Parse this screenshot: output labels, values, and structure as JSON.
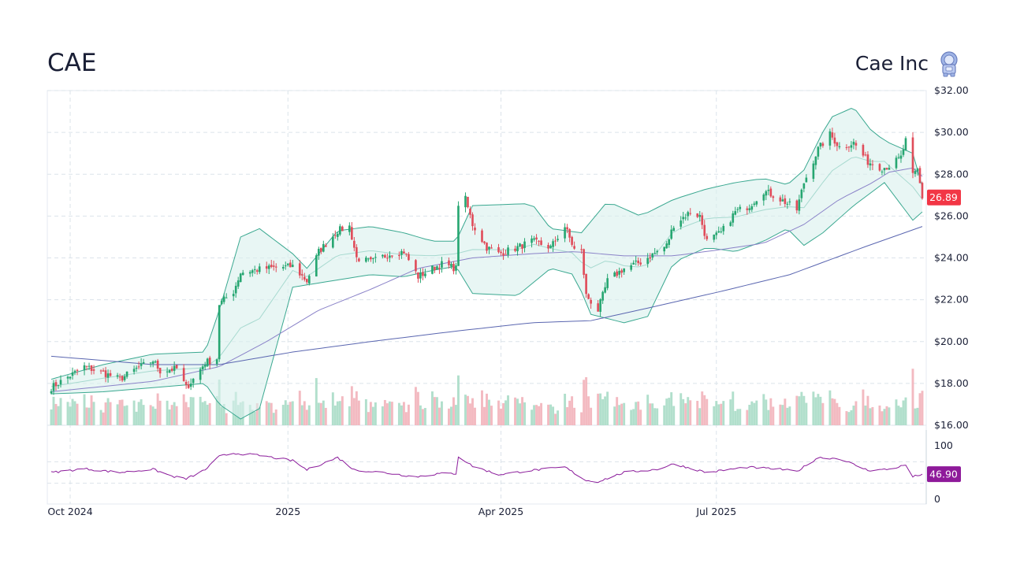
{
  "header": {
    "ticker": "CAE",
    "company": "Cae Inc"
  },
  "colors": {
    "up": "#26a671",
    "down": "#e04c5a",
    "band_line": "#3aa890",
    "band_fill": "#d8f0ec",
    "sma_mid": "#a6d9cf",
    "sma50": "#8a82c8",
    "sma200": "#5a66b0",
    "rsi": "#8a1a9a",
    "price_badge": "#f23645",
    "rsi_badge": "#8e1a9a"
  },
  "chart_data": {
    "type": "candlestick",
    "ticker": "CAE",
    "x_range": [
      "2024-09-23",
      "2025-09-26"
    ],
    "x_tick_labels": [
      {
        "date": "2024-10-01",
        "label": "Oct 2024"
      },
      {
        "date": "2025-01-01",
        "label": "2025"
      },
      {
        "date": "2025-04-01",
        "label": "Apr 2025"
      },
      {
        "date": "2025-07-01",
        "label": "Jul 2025"
      }
    ],
    "y_range": [
      16,
      32
    ],
    "y_tick_labels": [
      "$16.00",
      "$18.00",
      "$20.00",
      "$22.00",
      "$24.00",
      "$26.00",
      "$28.00",
      "$30.00",
      "$32.00"
    ],
    "y_ticks": [
      16,
      18,
      20,
      22,
      24,
      26,
      28,
      30,
      32
    ],
    "last_price": 26.89,
    "last_price_label": "26.89",
    "close_anchors": [
      [
        "2024-09-23",
        17.8
      ],
      [
        "2024-09-30",
        18.3
      ],
      [
        "2024-10-07",
        18.8
      ],
      [
        "2024-10-15",
        18.5
      ],
      [
        "2024-10-22",
        18.2
      ],
      [
        "2024-10-29",
        18.7
      ],
      [
        "2024-11-05",
        19.1
      ],
      [
        "2024-11-08",
        18.6
      ],
      [
        "2024-11-15",
        18.7
      ],
      [
        "2024-11-19",
        17.8
      ],
      [
        "2024-11-22",
        18.2
      ],
      [
        "2024-11-27",
        19.0
      ],
      [
        "2024-12-02",
        19.2
      ],
      [
        "2024-12-03",
        21.8
      ],
      [
        "2024-12-09",
        22.4
      ],
      [
        "2024-12-12",
        23.3
      ],
      [
        "2024-12-17",
        23.4
      ],
      [
        "2024-12-23",
        23.5
      ],
      [
        "2025-01-03",
        23.6
      ],
      [
        "2025-01-09",
        22.9
      ],
      [
        "2025-01-14",
        24.3
      ],
      [
        "2025-01-22",
        25.3
      ],
      [
        "2025-01-27",
        25.5
      ],
      [
        "2025-01-30",
        24.0
      ],
      [
        "2025-02-05",
        23.8
      ],
      [
        "2025-02-13",
        24.2
      ],
      [
        "2025-02-19",
        24.3
      ],
      [
        "2025-02-25",
        23.1
      ],
      [
        "2025-03-03",
        23.5
      ],
      [
        "2025-03-07",
        23.7
      ],
      [
        "2025-03-13",
        23.5
      ],
      [
        "2025-03-14",
        26.6
      ],
      [
        "2025-03-17",
        26.8
      ],
      [
        "2025-03-20",
        25.6
      ],
      [
        "2025-03-26",
        24.5
      ],
      [
        "2025-03-31",
        24.2
      ],
      [
        "2025-04-08",
        24.5
      ],
      [
        "2025-04-14",
        24.8
      ],
      [
        "2025-04-22",
        24.5
      ],
      [
        "2025-04-28",
        25.5
      ],
      [
        "2025-05-02",
        24.4
      ],
      [
        "2025-05-05",
        24.3
      ],
      [
        "2025-05-07",
        22.2
      ],
      [
        "2025-05-12",
        21.5
      ],
      [
        "2025-05-16",
        22.9
      ],
      [
        "2025-05-23",
        23.5
      ],
      [
        "2025-05-30",
        23.8
      ],
      [
        "2025-06-06",
        24.3
      ],
      [
        "2025-06-10",
        24.6
      ],
      [
        "2025-06-13",
        25.6
      ],
      [
        "2025-06-20",
        26.2
      ],
      [
        "2025-06-24",
        26.0
      ],
      [
        "2025-06-27",
        24.8
      ],
      [
        "2025-07-03",
        25.2
      ],
      [
        "2025-07-09",
        26.2
      ],
      [
        "2025-07-15",
        26.5
      ],
      [
        "2025-07-21",
        27.2
      ],
      [
        "2025-07-25",
        27.0
      ],
      [
        "2025-07-31",
        26.6
      ],
      [
        "2025-08-04",
        26.3
      ],
      [
        "2025-08-07",
        27.6
      ],
      [
        "2025-08-13",
        29.2
      ],
      [
        "2025-08-18",
        29.9
      ],
      [
        "2025-08-22",
        29.3
      ],
      [
        "2025-08-28",
        29.5
      ],
      [
        "2025-09-03",
        28.6
      ],
      [
        "2025-09-09",
        28.3
      ],
      [
        "2025-09-12",
        28.4
      ],
      [
        "2025-09-17",
        28.8
      ],
      [
        "2025-09-19",
        29.6
      ],
      [
        "2025-09-22",
        27.9
      ],
      [
        "2025-09-24",
        28.2
      ],
      [
        "2025-09-26",
        26.9
      ]
    ],
    "bollinger_bands": {
      "upper": [
        [
          "2024-09-23",
          18.2
        ],
        [
          "2024-10-15",
          18.9
        ],
        [
          "2024-11-05",
          19.4
        ],
        [
          "2024-11-27",
          19.5
        ],
        [
          "2024-12-03",
          21.5
        ],
        [
          "2024-12-12",
          25.0
        ],
        [
          "2024-12-20",
          25.4
        ],
        [
          "2025-01-03",
          24.2
        ],
        [
          "2025-01-09",
          23.5
        ],
        [
          "2025-01-22",
          25.3
        ],
        [
          "2025-02-05",
          25.5
        ],
        [
          "2025-02-19",
          25.2
        ],
        [
          "2025-03-03",
          24.8
        ],
        [
          "2025-03-13",
          24.8
        ],
        [
          "2025-03-20",
          26.5
        ],
        [
          "2025-04-14",
          26.6
        ],
        [
          "2025-04-22",
          25.4
        ],
        [
          "2025-05-05",
          25.2
        ],
        [
          "2025-05-16",
          26.7
        ],
        [
          "2025-05-30",
          26.0
        ],
        [
          "2025-06-13",
          26.8
        ],
        [
          "2025-06-27",
          27.3
        ],
        [
          "2025-07-09",
          27.6
        ],
        [
          "2025-07-21",
          27.8
        ],
        [
          "2025-07-31",
          27.5
        ],
        [
          "2025-08-07",
          28.2
        ],
        [
          "2025-08-18",
          30.7
        ],
        [
          "2025-08-28",
          31.2
        ],
        [
          "2025-09-05",
          30.0
        ],
        [
          "2025-09-12",
          29.5
        ],
        [
          "2025-09-22",
          29.0
        ],
        [
          "2025-09-26",
          27.4
        ]
      ],
      "lower": [
        [
          "2024-09-23",
          17.5
        ],
        [
          "2024-10-15",
          17.6
        ],
        [
          "2024-11-05",
          17.8
        ],
        [
          "2024-11-27",
          18.0
        ],
        [
          "2024-12-03",
          17.0
        ],
        [
          "2024-12-12",
          16.3
        ],
        [
          "2024-12-20",
          16.8
        ],
        [
          "2025-01-03",
          22.6
        ],
        [
          "2025-01-14",
          22.8
        ],
        [
          "2025-02-05",
          23.2
        ],
        [
          "2025-02-19",
          23.1
        ],
        [
          "2025-03-03",
          23.4
        ],
        [
          "2025-03-13",
          23.6
        ],
        [
          "2025-03-20",
          22.3
        ],
        [
          "2025-04-08",
          22.2
        ],
        [
          "2025-04-22",
          23.5
        ],
        [
          "2025-05-02",
          23.2
        ],
        [
          "2025-05-09",
          21.3
        ],
        [
          "2025-05-23",
          20.9
        ],
        [
          "2025-06-02",
          21.2
        ],
        [
          "2025-06-13",
          23.8
        ],
        [
          "2025-06-27",
          24.5
        ],
        [
          "2025-07-09",
          24.3
        ],
        [
          "2025-07-21",
          24.8
        ],
        [
          "2025-07-31",
          25.4
        ],
        [
          "2025-08-07",
          24.6
        ],
        [
          "2025-08-15",
          25.2
        ],
        [
          "2025-08-28",
          26.5
        ],
        [
          "2025-09-10",
          27.6
        ],
        [
          "2025-09-22",
          25.8
        ],
        [
          "2025-09-26",
          26.2
        ]
      ]
    },
    "moving_averages": {
      "sma50": [
        [
          "2024-09-23",
          17.6
        ],
        [
          "2024-11-05",
          18.1
        ],
        [
          "2024-12-03",
          18.8
        ],
        [
          "2024-12-23",
          20.0
        ],
        [
          "2025-01-14",
          21.5
        ],
        [
          "2025-02-05",
          22.5
        ],
        [
          "2025-02-25",
          23.5
        ],
        [
          "2025-03-20",
          24.0
        ],
        [
          "2025-04-14",
          24.2
        ],
        [
          "2025-05-02",
          24.3
        ],
        [
          "2025-05-23",
          24.1
        ],
        [
          "2025-06-13",
          24.1
        ],
        [
          "2025-07-03",
          24.4
        ],
        [
          "2025-07-21",
          24.7
        ],
        [
          "2025-08-07",
          25.6
        ],
        [
          "2025-08-22",
          26.8
        ],
        [
          "2025-09-05",
          27.6
        ],
        [
          "2025-09-12",
          28.1
        ],
        [
          "2025-09-22",
          28.3
        ],
        [
          "2025-09-26",
          27.9
        ]
      ],
      "sma200": [
        [
          "2024-09-23",
          19.3
        ],
        [
          "2024-11-05",
          18.9
        ],
        [
          "2024-12-03",
          18.9
        ],
        [
          "2025-01-03",
          19.5
        ],
        [
          "2025-02-05",
          20.0
        ],
        [
          "2025-03-13",
          20.5
        ],
        [
          "2025-04-14",
          20.9
        ],
        [
          "2025-05-09",
          21.0
        ],
        [
          "2025-06-02",
          21.6
        ],
        [
          "2025-07-03",
          22.4
        ],
        [
          "2025-08-01",
          23.2
        ],
        [
          "2025-09-01",
          24.5
        ],
        [
          "2025-09-26",
          25.5
        ]
      ]
    },
    "volume_panel": {
      "baseline": 16.0,
      "max_height_price_units": 2.8
    },
    "rsi": {
      "y_range": [
        0,
        100
      ],
      "y_tick_labels": [
        "100",
        "0"
      ],
      "y_ticks": [
        100,
        0
      ],
      "reference_levels": [
        70,
        30
      ],
      "last_value": 46.9,
      "last_value_label": "46.90",
      "anchors": [
        [
          "2024-09-23",
          50
        ],
        [
          "2024-10-07",
          57
        ],
        [
          "2024-10-22",
          50
        ],
        [
          "2024-11-05",
          56
        ],
        [
          "2024-11-13",
          43
        ],
        [
          "2024-11-19",
          38
        ],
        [
          "2024-11-27",
          55
        ],
        [
          "2024-12-03",
          80
        ],
        [
          "2024-12-09",
          86
        ],
        [
          "2024-12-20",
          82
        ],
        [
          "2025-01-03",
          72
        ],
        [
          "2025-01-09",
          55
        ],
        [
          "2025-01-22",
          78
        ],
        [
          "2025-01-29",
          55
        ],
        [
          "2025-02-10",
          50
        ],
        [
          "2025-02-24",
          42
        ],
        [
          "2025-03-06",
          48
        ],
        [
          "2025-03-13",
          48
        ],
        [
          "2025-03-14",
          80
        ],
        [
          "2025-03-20",
          62
        ],
        [
          "2025-03-31",
          46
        ],
        [
          "2025-04-14",
          54
        ],
        [
          "2025-04-28",
          60
        ],
        [
          "2025-05-07",
          35
        ],
        [
          "2025-05-12",
          33
        ],
        [
          "2025-05-23",
          50
        ],
        [
          "2025-06-06",
          56
        ],
        [
          "2025-06-13",
          66
        ],
        [
          "2025-06-27",
          50
        ],
        [
          "2025-07-14",
          60
        ],
        [
          "2025-07-28",
          56
        ],
        [
          "2025-08-04",
          52
        ],
        [
          "2025-08-13",
          78
        ],
        [
          "2025-08-22",
          76
        ],
        [
          "2025-09-03",
          54
        ],
        [
          "2025-09-12",
          56
        ],
        [
          "2025-09-19",
          64
        ],
        [
          "2025-09-22",
          42
        ],
        [
          "2025-09-26",
          46.9
        ]
      ]
    }
  }
}
